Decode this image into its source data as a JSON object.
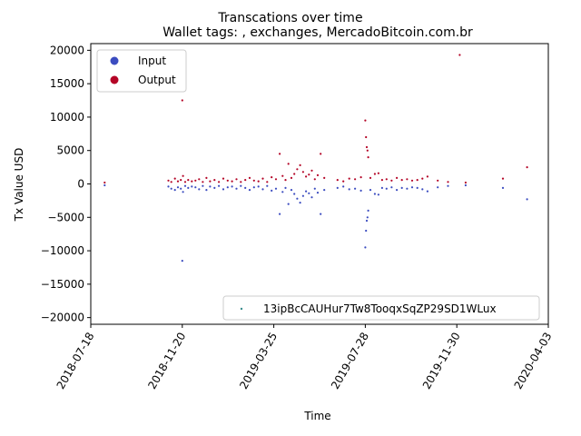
{
  "chart_data": {
    "type": "scatter",
    "title": "Transcations over time",
    "subtitle": "Wallet tags: , exchanges, MercadoBitcoin.com.br",
    "xlabel": "Time",
    "ylabel": "Tx Value USD",
    "xlim": [
      "2018-07-18",
      "2020-04-03"
    ],
    "ylim": [
      -21000,
      21000
    ],
    "x_ticks": [
      "2018-07-18",
      "2018-11-20",
      "2019-03-25",
      "2019-07-28",
      "2019-11-30",
      "2020-04-03"
    ],
    "y_ticks": [
      -20000,
      -15000,
      -10000,
      -5000,
      0,
      5000,
      10000,
      15000,
      20000
    ],
    "grid": false,
    "colors": {
      "input": "#3b4cc0",
      "output": "#b40426",
      "address": "#3a8f8f"
    },
    "legend_top": {
      "placement": "top-left",
      "entries": [
        {
          "label": "Input",
          "color": "#3b4cc0"
        },
        {
          "label": "Output",
          "color": "#b40426"
        }
      ]
    },
    "legend_bottom": {
      "placement": "bottom-right",
      "entries": [
        {
          "label": "13ipBcCAUHur7Tw8TooqxSqZP29SD1WLux",
          "color": "#3a8f8f"
        }
      ]
    },
    "series": [
      {
        "name": "Output",
        "points": [
          [
            "2018-08-06",
            200
          ],
          [
            "2018-11-01",
            500
          ],
          [
            "2018-11-05",
            300
          ],
          [
            "2018-11-10",
            800
          ],
          [
            "2018-11-14",
            400
          ],
          [
            "2018-11-18",
            600
          ],
          [
            "2018-11-20",
            12500
          ],
          [
            "2018-11-21",
            1200
          ],
          [
            "2018-11-24",
            300
          ],
          [
            "2018-11-28",
            600
          ],
          [
            "2018-12-03",
            400
          ],
          [
            "2018-12-08",
            500
          ],
          [
            "2018-12-13",
            700
          ],
          [
            "2018-12-18",
            300
          ],
          [
            "2018-12-23",
            900
          ],
          [
            "2018-12-28",
            400
          ],
          [
            "2019-01-03",
            600
          ],
          [
            "2019-01-09",
            300
          ],
          [
            "2019-01-15",
            800
          ],
          [
            "2019-01-21",
            500
          ],
          [
            "2019-01-27",
            400
          ],
          [
            "2019-02-02",
            700
          ],
          [
            "2019-02-08",
            300
          ],
          [
            "2019-02-14",
            600
          ],
          [
            "2019-02-20",
            900
          ],
          [
            "2019-02-26",
            500
          ],
          [
            "2019-03-04",
            400
          ],
          [
            "2019-03-10",
            800
          ],
          [
            "2019-03-16",
            300
          ],
          [
            "2019-03-22",
            1000
          ],
          [
            "2019-03-28",
            700
          ],
          [
            "2019-04-02",
            4500
          ],
          [
            "2019-04-06",
            1200
          ],
          [
            "2019-04-10",
            600
          ],
          [
            "2019-04-14",
            3000
          ],
          [
            "2019-04-18",
            900
          ],
          [
            "2019-04-22",
            1500
          ],
          [
            "2019-04-26",
            2200
          ],
          [
            "2019-04-30",
            2800
          ],
          [
            "2019-05-04",
            1800
          ],
          [
            "2019-05-08",
            1100
          ],
          [
            "2019-05-12",
            1400
          ],
          [
            "2019-05-16",
            2000
          ],
          [
            "2019-05-20",
            700
          ],
          [
            "2019-05-24",
            1300
          ],
          [
            "2019-05-28",
            4500
          ],
          [
            "2019-06-02",
            900
          ],
          [
            "2019-06-20",
            600
          ],
          [
            "2019-06-28",
            400
          ],
          [
            "2019-07-06",
            800
          ],
          [
            "2019-07-14",
            700
          ],
          [
            "2019-07-22",
            1000
          ],
          [
            "2019-07-28",
            9500
          ],
          [
            "2019-07-29",
            7000
          ],
          [
            "2019-07-30",
            5500
          ],
          [
            "2019-07-31",
            5000
          ],
          [
            "2019-08-01",
            4000
          ],
          [
            "2019-08-04",
            900
          ],
          [
            "2019-08-10",
            1500
          ],
          [
            "2019-08-15",
            1600
          ],
          [
            "2019-08-20",
            600
          ],
          [
            "2019-08-26",
            700
          ],
          [
            "2019-09-02",
            500
          ],
          [
            "2019-09-09",
            900
          ],
          [
            "2019-09-16",
            600
          ],
          [
            "2019-09-23",
            700
          ],
          [
            "2019-09-30",
            500
          ],
          [
            "2019-10-07",
            600
          ],
          [
            "2019-10-14",
            800
          ],
          [
            "2019-10-21",
            1100
          ],
          [
            "2019-11-04",
            500
          ],
          [
            "2019-11-18",
            300
          ],
          [
            "2019-12-04",
            19300
          ],
          [
            "2019-12-12",
            200
          ],
          [
            "2020-02-01",
            800
          ],
          [
            "2020-03-05",
            2500
          ]
        ]
      },
      {
        "name": "Input",
        "points": [
          [
            "2018-08-06",
            -200
          ],
          [
            "2018-11-01",
            -400
          ],
          [
            "2018-11-05",
            -700
          ],
          [
            "2018-11-10",
            -900
          ],
          [
            "2018-11-14",
            -500
          ],
          [
            "2018-11-18",
            -700
          ],
          [
            "2018-11-20",
            -11500
          ],
          [
            "2018-11-21",
            -1200
          ],
          [
            "2018-11-24",
            -300
          ],
          [
            "2018-11-28",
            -600
          ],
          [
            "2018-12-03",
            -400
          ],
          [
            "2018-12-08",
            -500
          ],
          [
            "2018-12-13",
            -800
          ],
          [
            "2018-12-18",
            -300
          ],
          [
            "2018-12-23",
            -900
          ],
          [
            "2018-12-28",
            -400
          ],
          [
            "2019-01-03",
            -600
          ],
          [
            "2019-01-09",
            -300
          ],
          [
            "2019-01-15",
            -800
          ],
          [
            "2019-01-21",
            -500
          ],
          [
            "2019-01-27",
            -400
          ],
          [
            "2019-02-02",
            -700
          ],
          [
            "2019-02-08",
            -300
          ],
          [
            "2019-02-14",
            -600
          ],
          [
            "2019-02-20",
            -900
          ],
          [
            "2019-02-26",
            -500
          ],
          [
            "2019-03-04",
            -400
          ],
          [
            "2019-03-10",
            -800
          ],
          [
            "2019-03-16",
            -300
          ],
          [
            "2019-03-22",
            -1000
          ],
          [
            "2019-03-28",
            -700
          ],
          [
            "2019-04-02",
            -4500
          ],
          [
            "2019-04-06",
            -1200
          ],
          [
            "2019-04-10",
            -600
          ],
          [
            "2019-04-14",
            -3000
          ],
          [
            "2019-04-18",
            -900
          ],
          [
            "2019-04-22",
            -1500
          ],
          [
            "2019-04-26",
            -2200
          ],
          [
            "2019-04-30",
            -2800
          ],
          [
            "2019-05-04",
            -1800
          ],
          [
            "2019-05-08",
            -1100
          ],
          [
            "2019-05-12",
            -1400
          ],
          [
            "2019-05-16",
            -2000
          ],
          [
            "2019-05-20",
            -700
          ],
          [
            "2019-05-24",
            -1300
          ],
          [
            "2019-05-28",
            -4500
          ],
          [
            "2019-06-02",
            -900
          ],
          [
            "2019-06-20",
            -600
          ],
          [
            "2019-06-28",
            -400
          ],
          [
            "2019-07-06",
            -800
          ],
          [
            "2019-07-14",
            -700
          ],
          [
            "2019-07-22",
            -1000
          ],
          [
            "2019-07-28",
            -9500
          ],
          [
            "2019-07-29",
            -7000
          ],
          [
            "2019-07-30",
            -5500
          ],
          [
            "2019-07-31",
            -5000
          ],
          [
            "2019-08-01",
            -4000
          ],
          [
            "2019-08-04",
            -900
          ],
          [
            "2019-08-10",
            -1500
          ],
          [
            "2019-08-15",
            -1600
          ],
          [
            "2019-08-20",
            -600
          ],
          [
            "2019-08-26",
            -700
          ],
          [
            "2019-09-02",
            -500
          ],
          [
            "2019-09-09",
            -900
          ],
          [
            "2019-09-16",
            -600
          ],
          [
            "2019-09-23",
            -700
          ],
          [
            "2019-09-30",
            -500
          ],
          [
            "2019-10-07",
            -600
          ],
          [
            "2019-10-14",
            -800
          ],
          [
            "2019-10-21",
            -1100
          ],
          [
            "2019-11-04",
            -500
          ],
          [
            "2019-11-18",
            -300
          ],
          [
            "2019-12-12",
            -200
          ],
          [
            "2020-02-01",
            -600
          ],
          [
            "2020-03-05",
            -2300
          ]
        ]
      }
    ]
  }
}
